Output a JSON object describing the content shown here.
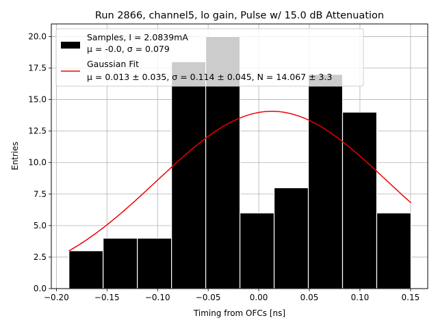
{
  "chart_data": {
    "type": "bar",
    "title": "Run 2866, channel5, lo gain, Pulse w/ 15.0 dB Attenuation",
    "xlabel": "Timing from OFCs [ns]",
    "ylabel": "Entries",
    "xlim": [
      -0.205,
      0.167
    ],
    "ylim": [
      0,
      21
    ],
    "grid": true,
    "legend_position": "top-left",
    "bin_edges": [
      -0.1876,
      -0.1538,
      -0.12,
      -0.0862,
      -0.0524,
      -0.0186,
      0.0152,
      0.049,
      0.0828,
      0.1166,
      0.1504
    ],
    "series": [
      {
        "name": "Samples, I = 2.0839mA",
        "name_line2": "μ = -0.0, σ = 0.079",
        "values": [
          3,
          4,
          4,
          18,
          20,
          6,
          8,
          17,
          14,
          6
        ],
        "color": "#000000",
        "edge_color": "#ffffff"
      },
      {
        "name": "Gaussian Fit",
        "name_line2": "μ = 0.013 ± 0.035, σ = 0.114 ± 0.045, N = 14.067 ± 3.3",
        "type": "line",
        "color": "#ee0000",
        "mu": 0.013,
        "sigma": 0.114,
        "N": 14.067
      }
    ],
    "xticks": [
      -0.2,
      -0.15,
      -0.1,
      -0.05,
      0.0,
      0.05,
      0.1,
      0.15
    ],
    "xtick_labels": [
      "−0.20",
      "−0.15",
      "−0.10",
      "−0.05",
      "0.00",
      "0.05",
      "0.10",
      "0.15"
    ],
    "yticks": [
      0,
      2.5,
      5,
      7.5,
      10,
      12.5,
      15,
      17.5,
      20
    ],
    "ytick_labels": [
      "0.0",
      "2.5",
      "5.0",
      "7.5",
      "10.0",
      "12.5",
      "15.0",
      "17.5",
      "20.0"
    ]
  }
}
